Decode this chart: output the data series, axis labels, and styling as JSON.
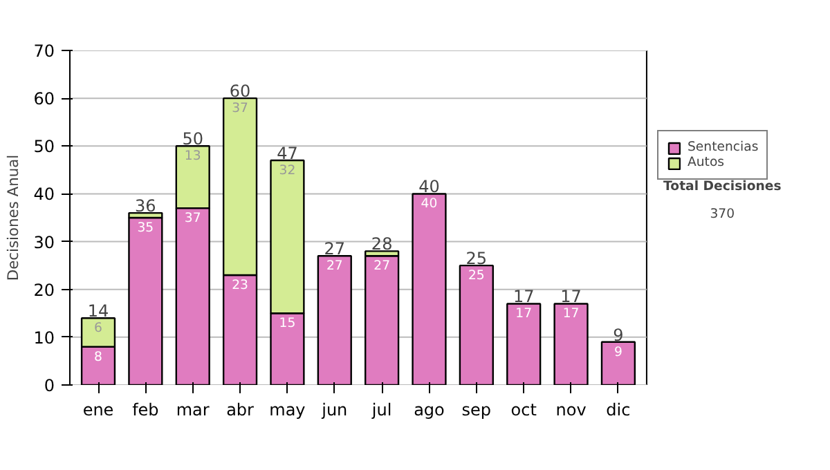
{
  "chart_data": {
    "type": "bar",
    "stacked": true,
    "ylabel": "Decisiones Anual",
    "categories": [
      "ene",
      "feb",
      "mar",
      "abr",
      "may",
      "jun",
      "jul",
      "ago",
      "sep",
      "oct",
      "nov",
      "dic"
    ],
    "series": [
      {
        "name": "Sentencias",
        "color": "#e07cc0",
        "values": [
          8,
          35,
          37,
          23,
          15,
          27,
          27,
          40,
          25,
          17,
          17,
          9
        ],
        "value_labels": [
          "8",
          "35",
          "37",
          "23",
          "15",
          "27",
          "27",
          "40",
          "25",
          "17",
          "17",
          "9"
        ]
      },
      {
        "name": "Autos",
        "color": "#d4ec94",
        "values": [
          6,
          1,
          13,
          37,
          32,
          0,
          1,
          0,
          0,
          0,
          0,
          0
        ],
        "value_labels": [
          "6",
          null,
          "13",
          "37",
          "32",
          null,
          null,
          null,
          null,
          null,
          null,
          null
        ]
      }
    ],
    "totals": [
      "14",
      "36",
      "50",
      "60",
      "47",
      "27",
      "28",
      "40",
      "25",
      "17",
      "17",
      "9"
    ],
    "ylim": [
      0,
      70
    ],
    "yticks": [
      0,
      10,
      20,
      30,
      40,
      50,
      60,
      70
    ],
    "grid": "y",
    "legend": "right",
    "annotations": [
      "Total Decisiones",
      "370"
    ]
  }
}
